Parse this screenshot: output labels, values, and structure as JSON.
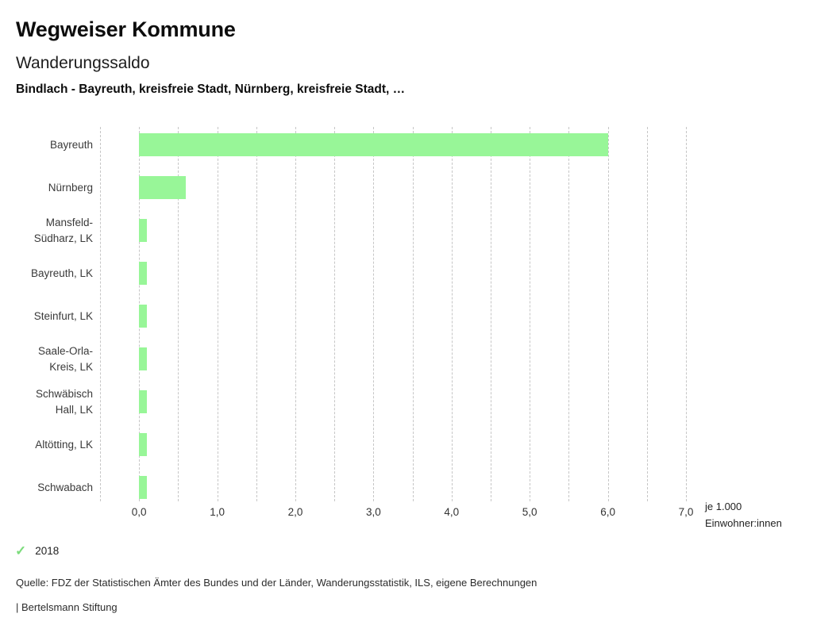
{
  "header": {
    "app_title": "Wegweiser Kommune",
    "chart_title": "Wanderungssaldo",
    "subtitle": "Bindlach - Bayreuth, kreisfreie Stadt, Nürnberg, kreisfreie Stadt, …"
  },
  "chart_data": {
    "type": "bar",
    "orientation": "horizontal",
    "title": "Wanderungssaldo",
    "categories": [
      "Bayreuth",
      "Nürnberg",
      "Mansfeld-Südharz, LK",
      "Bayreuth, LK",
      "Steinfurt, LK",
      "Saale-Orla-Kreis, LK",
      "Schwäbisch Hall, LK",
      "Altötting, LK",
      "Schwabach"
    ],
    "category_lines": [
      [
        "Bayreuth"
      ],
      [
        "Nürnberg"
      ],
      [
        "Mansfeld-",
        "Südharz, LK"
      ],
      [
        "Bayreuth, LK"
      ],
      [
        "Steinfurt, LK"
      ],
      [
        "Saale-Orla-",
        "Kreis, LK"
      ],
      [
        "Schwäbisch",
        "Hall, LK"
      ],
      [
        "Altötting, LK"
      ],
      [
        "Schwabach"
      ]
    ],
    "series": [
      {
        "name": "2018",
        "values": [
          6.0,
          0.6,
          0.1,
          0.1,
          0.1,
          0.1,
          0.1,
          0.1,
          0.1
        ]
      }
    ],
    "xlabel": "je 1.000 Einwohner:innen",
    "xlim": [
      -0.5,
      7.2
    ],
    "x_ticks": [
      0,
      1,
      2,
      3,
      4,
      5,
      6,
      7
    ],
    "x_tick_labels": [
      "0,0",
      "1,0",
      "2,0",
      "3,0",
      "4,0",
      "5,0",
      "6,0",
      "7,0"
    ],
    "minor_grid_step": 0.5,
    "grid": "vertical-dashed",
    "legend_position": "bottom-left",
    "bar_color": "#98f698",
    "grid_color": "#c6c6c6"
  },
  "axis": {
    "unit_lines": [
      "je 1.000",
      "Einwohner:innen"
    ]
  },
  "legend": {
    "items": [
      {
        "label": "2018",
        "check_icon": "✓",
        "check_color": "#7cdc7c"
      }
    ]
  },
  "footer": {
    "source": "Quelle: FDZ der Statistischen Ämter des Bundes und der Länder, Wanderungsstatistik, ILS, eigene Berechnungen",
    "attribution": "| Bertelsmann Stiftung"
  }
}
